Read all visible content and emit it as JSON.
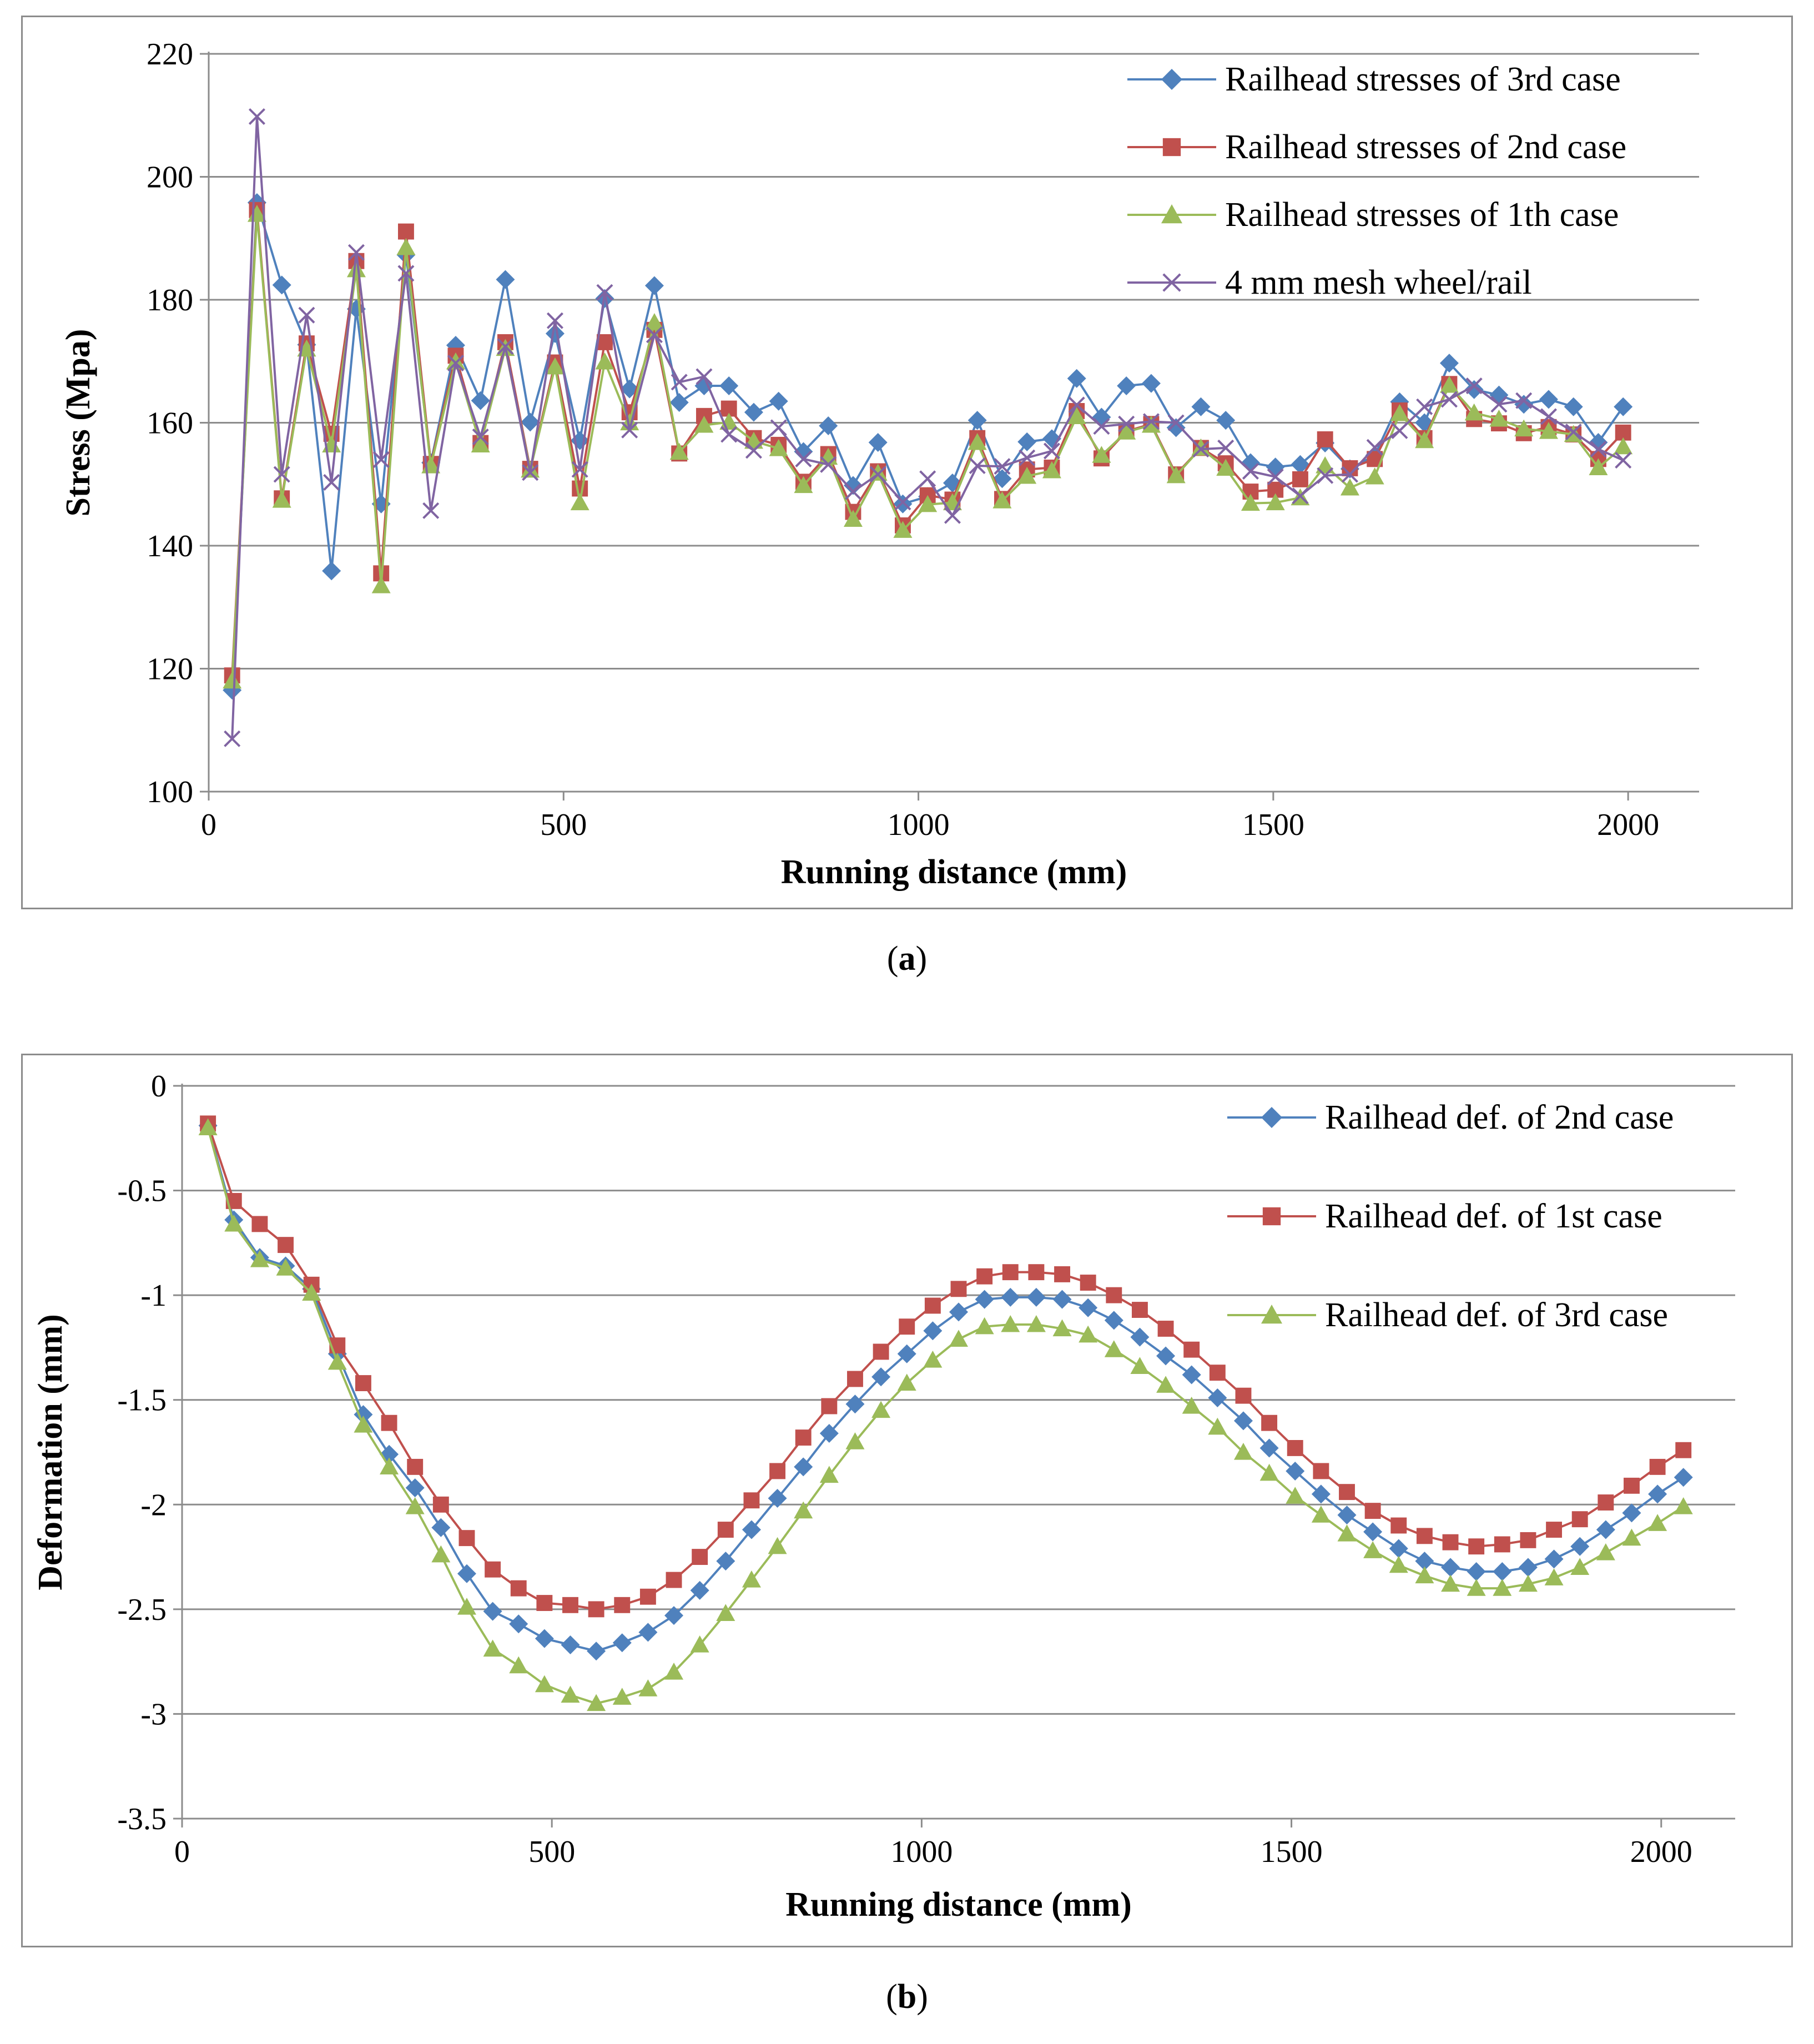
{
  "chart_data": [
    {
      "type": "line",
      "panel_label": "a",
      "title": "",
      "xlabel": "Running distance (mm)",
      "ylabel": "Stress (Mpa)",
      "xlim": [
        0,
        2100
      ],
      "ylim": [
        100,
        220
      ],
      "xticks": [
        0,
        500,
        1000,
        1500,
        2000
      ],
      "yticks": [
        100,
        120,
        140,
        160,
        180,
        200,
        220
      ],
      "grid": "horizontal",
      "legend_position": "top-right",
      "x": [
        33,
        68,
        103,
        138,
        173,
        208,
        243,
        278,
        313,
        348,
        383,
        418,
        453,
        488,
        523,
        558,
        593,
        628,
        663,
        698,
        733,
        768,
        803,
        838,
        873,
        908,
        943,
        978,
        1013,
        1048,
        1083,
        1118,
        1153,
        1188,
        1223,
        1258,
        1293,
        1328,
        1363,
        1398,
        1433,
        1468,
        1503,
        1538,
        1573,
        1608,
        1643,
        1678,
        1713,
        1748,
        1783,
        1818,
        1853,
        1888,
        1923,
        1958,
        1993
      ],
      "series": [
        {
          "name": "Railhead stresses of 3rd case",
          "color": "#4f81bd",
          "marker": "diamond",
          "values": [
            116.5,
            195.8,
            182.4,
            172.7,
            135.9,
            178.5,
            146.8,
            187.3,
            153.5,
            172.6,
            163.6,
            183.3,
            160.1,
            174.5,
            157.1,
            180.2,
            165.5,
            182.3,
            163.3,
            166.0,
            166.0,
            161.7,
            163.5,
            155.3,
            159.5,
            149.8,
            156.8,
            146.8,
            148.0,
            150.2,
            160.4,
            150.9,
            156.9,
            157.4,
            167.2,
            160.9,
            166.0,
            166.4,
            159.2,
            162.6,
            160.4,
            153.5,
            152.8,
            153.2,
            156.7,
            152.5,
            154.7,
            163.4,
            160.0,
            169.7,
            165.4,
            164.5,
            163.0,
            163.8,
            162.6,
            156.8,
            162.6
          ]
        },
        {
          "name": "Railhead stresses of 2nd case",
          "color": "#c0504d",
          "marker": "square",
          "values": [
            118.9,
            194.6,
            147.7,
            172.9,
            158.2,
            186.3,
            135.5,
            191.1,
            153.3,
            170.9,
            156.7,
            173.1,
            152.5,
            169.8,
            149.3,
            173.1,
            161.7,
            175.1,
            155.0,
            161.1,
            162.3,
            157.5,
            156.4,
            150.4,
            154.9,
            145.5,
            152.1,
            143.3,
            148.2,
            147.5,
            157.5,
            147.6,
            152.4,
            152.7,
            161.9,
            154.2,
            158.6,
            159.8,
            151.6,
            155.9,
            153.4,
            148.8,
            149.1,
            150.8,
            157.3,
            152.6,
            154.1,
            162.0,
            157.5,
            166.3,
            160.6,
            159.9,
            158.3,
            159.3,
            158.1,
            154.1,
            158.4
          ]
        },
        {
          "name": "Railhead stresses of 1th case",
          "color": "#9bbb59",
          "marker": "triangle",
          "values": [
            118.0,
            193.9,
            147.4,
            172.0,
            156.4,
            184.9,
            133.5,
            188.5,
            153.0,
            169.9,
            156.4,
            172.1,
            152.3,
            169.1,
            147.0,
            169.9,
            160.0,
            176.3,
            155.2,
            159.6,
            160.1,
            157.0,
            155.8,
            149.8,
            154.4,
            144.3,
            151.8,
            142.5,
            146.7,
            147.0,
            156.8,
            147.3,
            151.3,
            152.2,
            161.0,
            154.7,
            158.5,
            159.6,
            151.4,
            155.9,
            152.6,
            146.9,
            147.0,
            147.8,
            153.0,
            149.4,
            151.2,
            161.5,
            157.1,
            166.1,
            161.6,
            160.6,
            159.0,
            158.6,
            158.1,
            152.7,
            156.1
          ]
        },
        {
          "name": "4 mm mesh wheel/rail",
          "color": "#8064a2",
          "marker": "x",
          "values": [
            108.6,
            209.8,
            151.6,
            177.5,
            150.3,
            187.7,
            154.0,
            184.3,
            145.7,
            169.7,
            157.7,
            172.4,
            151.9,
            176.6,
            152.4,
            181.2,
            158.8,
            174.3,
            166.6,
            167.5,
            158.1,
            155.5,
            159.2,
            154.1,
            153.2,
            148.8,
            151.6,
            147.1,
            150.9,
            144.9,
            153.0,
            152.9,
            154.3,
            155.4,
            162.9,
            159.4,
            159.8,
            160.2,
            160.0,
            155.7,
            155.9,
            152.1,
            151.2,
            148.1,
            151.4,
            151.6,
            156.0,
            158.7,
            162.6,
            163.8,
            166.0,
            163.0,
            163.6,
            161.0,
            158.5,
            155.7,
            153.9
          ]
        }
      ]
    },
    {
      "type": "line",
      "panel_label": "b",
      "title": "",
      "xlabel": "Running distance (mm)",
      "ylabel": "Deformation (mm)",
      "xlim": [
        0,
        2100
      ],
      "ylim": [
        -3.5,
        0
      ],
      "xticks": [
        0,
        500,
        1000,
        1500,
        2000
      ],
      "yticks": [
        0,
        -0.5,
        -1,
        -1.5,
        -2,
        -2.5,
        -3,
        -3.5
      ],
      "grid": "horizontal",
      "legend_position": "top-right",
      "x": [
        35,
        70,
        105,
        140,
        175,
        210,
        245,
        280,
        315,
        350,
        385,
        420,
        455,
        490,
        525,
        560,
        595,
        630,
        665,
        700,
        735,
        770,
        805,
        840,
        875,
        910,
        945,
        980,
        1015,
        1050,
        1085,
        1120,
        1155,
        1190,
        1225,
        1260,
        1295,
        1330,
        1365,
        1400,
        1435,
        1470,
        1505,
        1540,
        1575,
        1610,
        1645,
        1680,
        1715,
        1750,
        1785,
        1820,
        1855,
        1890,
        1925,
        1960,
        1995,
        2030
      ],
      "series": [
        {
          "name": "Railhead def. of 2nd case",
          "color": "#4f81bd",
          "marker": "diamond",
          "values": [
            -0.19,
            -0.64,
            -0.82,
            -0.86,
            -0.97,
            -1.28,
            -1.57,
            -1.76,
            -1.92,
            -2.11,
            -2.33,
            -2.51,
            -2.57,
            -2.64,
            -2.67,
            -2.7,
            -2.66,
            -2.61,
            -2.53,
            -2.41,
            -2.27,
            -2.12,
            -1.97,
            -1.82,
            -1.66,
            -1.52,
            -1.39,
            -1.28,
            -1.17,
            -1.08,
            -1.02,
            -1.01,
            -1.01,
            -1.02,
            -1.06,
            -1.12,
            -1.2,
            -1.29,
            -1.38,
            -1.49,
            -1.6,
            -1.73,
            -1.84,
            -1.95,
            -2.05,
            -2.13,
            -2.21,
            -2.27,
            -2.3,
            -2.32,
            -2.32,
            -2.3,
            -2.26,
            -2.2,
            -2.12,
            -2.04,
            -1.95,
            -1.87
          ]
        },
        {
          "name": "Railhead def. of 1st case",
          "color": "#c0504d",
          "marker": "square",
          "values": [
            -0.18,
            -0.55,
            -0.66,
            -0.76,
            -0.95,
            -1.24,
            -1.42,
            -1.61,
            -1.82,
            -2.0,
            -2.16,
            -2.31,
            -2.4,
            -2.47,
            -2.48,
            -2.5,
            -2.48,
            -2.44,
            -2.36,
            -2.25,
            -2.12,
            -1.98,
            -1.84,
            -1.68,
            -1.53,
            -1.4,
            -1.27,
            -1.15,
            -1.05,
            -0.97,
            -0.91,
            -0.89,
            -0.89,
            -0.9,
            -0.94,
            -1.0,
            -1.07,
            -1.16,
            -1.26,
            -1.37,
            -1.48,
            -1.61,
            -1.73,
            -1.84,
            -1.94,
            -2.03,
            -2.1,
            -2.15,
            -2.18,
            -2.2,
            -2.19,
            -2.17,
            -2.12,
            -2.07,
            -1.99,
            -1.91,
            -1.82,
            -1.74
          ]
        },
        {
          "name": "Railhead def. of 3rd case",
          "color": "#9bbb59",
          "marker": "triangle",
          "values": [
            -0.2,
            -0.66,
            -0.83,
            -0.87,
            -0.99,
            -1.32,
            -1.62,
            -1.82,
            -2.01,
            -2.24,
            -2.49,
            -2.69,
            -2.77,
            -2.86,
            -2.91,
            -2.95,
            -2.92,
            -2.88,
            -2.8,
            -2.67,
            -2.52,
            -2.36,
            -2.2,
            -2.03,
            -1.86,
            -1.7,
            -1.55,
            -1.42,
            -1.31,
            -1.21,
            -1.15,
            -1.14,
            -1.14,
            -1.16,
            -1.19,
            -1.26,
            -1.34,
            -1.43,
            -1.53,
            -1.63,
            -1.75,
            -1.85,
            -1.96,
            -2.05,
            -2.14,
            -2.22,
            -2.29,
            -2.34,
            -2.38,
            -2.4,
            -2.4,
            -2.38,
            -2.35,
            -2.3,
            -2.23,
            -2.16,
            -2.09,
            -2.01
          ]
        }
      ]
    }
  ],
  "captions": [
    {
      "open": "(",
      "label": "a",
      "close": ")"
    },
    {
      "open": "(",
      "label": "b",
      "close": ")"
    }
  ]
}
